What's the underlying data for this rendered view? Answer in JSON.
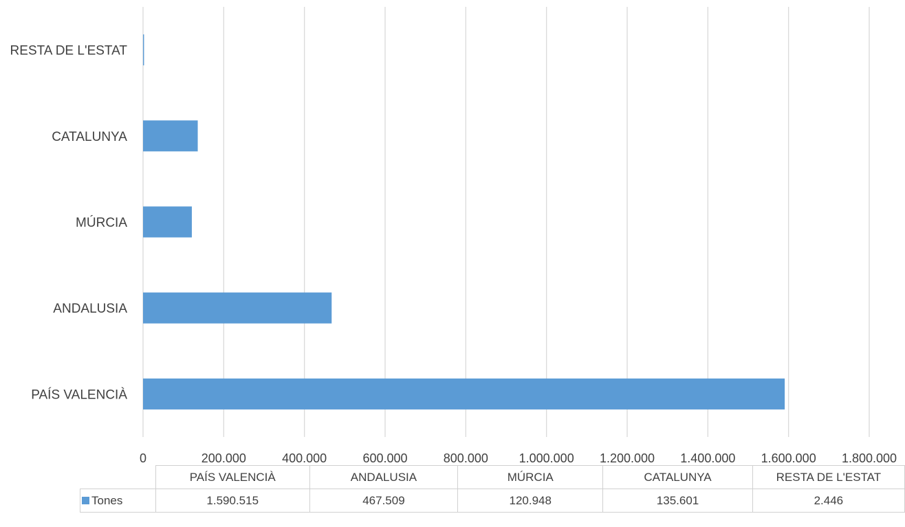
{
  "chart_data": {
    "type": "bar",
    "orientation": "horizontal",
    "categories": [
      "PAÍS VALENCIÀ",
      "ANDALUSIA",
      "MÚRCIA",
      "CATALUNYA",
      "RESTA DE L'ESTAT"
    ],
    "series": [
      {
        "name": "Tones",
        "values": [
          1590515,
          467509,
          120948,
          135601,
          2446
        ],
        "color": "#5b9bd5"
      }
    ],
    "xlim": [
      0,
      1800000
    ],
    "x_ticks": [
      0,
      200000,
      400000,
      600000,
      800000,
      1000000,
      1200000,
      1400000,
      1600000,
      1800000
    ],
    "x_tick_labels": [
      "0",
      "200.000",
      "400.000",
      "600.000",
      "800.000",
      "1.000.000",
      "1.200.000",
      "1.400.000",
      "1.600.000",
      "1.800.000"
    ],
    "grid": true,
    "data_table": {
      "headers": [
        "PAÍS VALENCIÀ",
        "ANDALUSIA",
        "MÚRCIA",
        "CATALUNYA",
        "RESTA DE L'ESTAT"
      ],
      "row_label": "Tones",
      "values": [
        "1.590.515",
        "467.509",
        "120.948",
        "135.601",
        "2.446"
      ]
    }
  }
}
